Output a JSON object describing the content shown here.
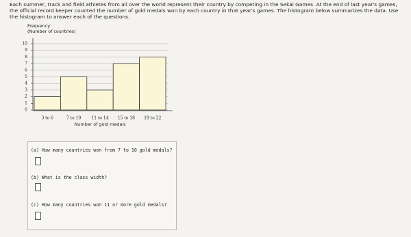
{
  "intro": "Each summer, track and field athletes from all over the world represent their country by competing in the Sekai Games. At the end of last year's games, the official record keeper counted the number of gold medals won by each country in that year's games. The histogram below summarizes the data. Use the histogram to answer each of the questions.",
  "chart_data": {
    "type": "bar",
    "y_label": "Frequency",
    "y_label_sub": "(Number of countries)",
    "x_label": "Number of gold medals",
    "categories": [
      "3 to 6",
      "7 to 10",
      "11 to 14",
      "15 to 18",
      "19 to 22"
    ],
    "values": [
      2,
      5,
      3,
      7,
      8
    ],
    "color": "#fbf6d6",
    "ylim": [
      0,
      10
    ],
    "yticks": [
      0,
      1,
      2,
      3,
      4,
      5,
      6,
      7,
      8,
      9,
      10
    ],
    "grid": true
  },
  "questions": [
    "(a) How many countries won from 7 to 10 gold medals?",
    "(b) What is the class width?",
    "(c) How many countries won 11 or more gold medals?"
  ]
}
